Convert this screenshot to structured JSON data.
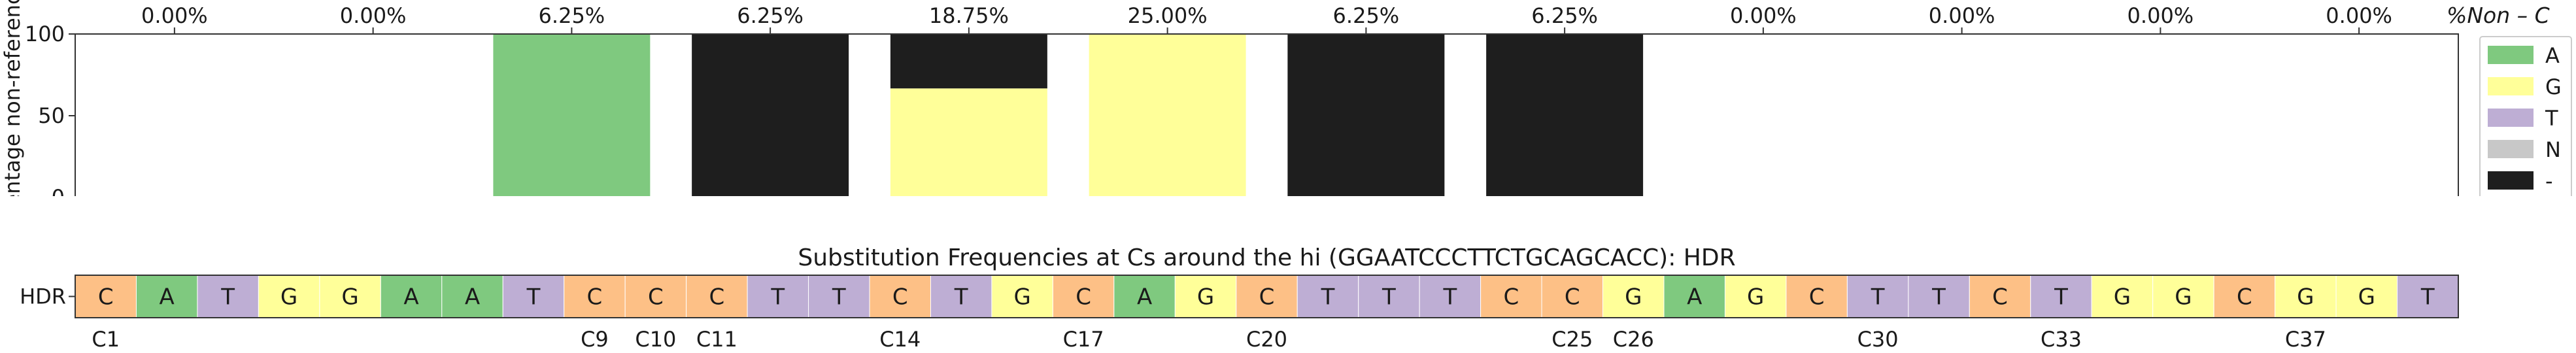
{
  "chart_data": [
    {
      "type": "bar",
      "stacked": true,
      "ylabel": "Percentage non-reference",
      "ylim": [
        0,
        100
      ],
      "yticks": [
        0,
        50,
        100
      ],
      "top_axis_label": "%Non – C",
      "categories": [
        "C1",
        "C9",
        "C10",
        "C11",
        "C14",
        "C17",
        "C20",
        "C25",
        "C26",
        "C30",
        "C33",
        "C37"
      ],
      "top_labels": [
        "0.00%",
        "0.00%",
        "6.25%",
        "6.25%",
        "18.75%",
        "25.00%",
        "6.25%",
        "6.25%",
        "0.00%",
        "0.00%",
        "0.00%",
        "0.00%"
      ],
      "series": [
        {
          "name": "A",
          "color": "#7fc97f",
          "values": [
            0,
            0,
            100,
            0,
            0,
            0,
            0,
            0,
            0,
            0,
            0,
            0
          ]
        },
        {
          "name": "G",
          "color": "#ffff99",
          "values": [
            0,
            0,
            0,
            0,
            66.7,
            100,
            0,
            0,
            0,
            0,
            0,
            0
          ]
        },
        {
          "name": "T",
          "color": "#beaed4",
          "values": [
            0,
            0,
            0,
            0,
            0,
            0,
            0,
            0,
            0,
            0,
            0,
            0
          ]
        },
        {
          "name": "N",
          "color": "#c8c8c8",
          "values": [
            0,
            0,
            0,
            0,
            0,
            0,
            0,
            0,
            0,
            0,
            0,
            0
          ]
        },
        {
          "name": "-",
          "color": "#1e1e1e",
          "values": [
            0,
            0,
            0,
            100,
            33.3,
            0,
            100,
            100,
            0,
            0,
            0,
            0
          ]
        }
      ],
      "legend": {
        "placement": "right",
        "entries": [
          "A",
          "G",
          "T",
          "N",
          "-"
        ]
      }
    },
    {
      "type": "table",
      "title": "Substitution Frequencies at Cs around the hi (GGAATCCCTTCTGCAGCACC): HDR",
      "row_label": "HDR",
      "sequence": [
        "C",
        "A",
        "T",
        "G",
        "G",
        "A",
        "A",
        "T",
        "C",
        "C",
        "C",
        "T",
        "T",
        "C",
        "T",
        "G",
        "C",
        "A",
        "G",
        "C",
        "T",
        "T",
        "T",
        "C",
        "C",
        "G",
        "A",
        "G",
        "C",
        "T",
        "T",
        "C",
        "T",
        "G",
        "G",
        "C",
        "G",
        "G",
        "T"
      ],
      "base_colors": {
        "A": "#7fc97f",
        "C": "#fdc086",
        "G": "#ffff99",
        "T": "#beaed4"
      },
      "position_labels": [
        {
          "label": "C1",
          "index": 0
        },
        {
          "label": "C9",
          "index": 8
        },
        {
          "label": "C10",
          "index": 9
        },
        {
          "label": "C11",
          "index": 10
        },
        {
          "label": "C14",
          "index": 13
        },
        {
          "label": "C17",
          "index": 16
        },
        {
          "label": "C20",
          "index": 19
        },
        {
          "label": "C25",
          "index": 24
        },
        {
          "label": "C26",
          "index": 25
        },
        {
          "label": "C30",
          "index": 29
        },
        {
          "label": "C33",
          "index": 32
        },
        {
          "label": "C37",
          "index": 36
        }
      ]
    }
  ]
}
